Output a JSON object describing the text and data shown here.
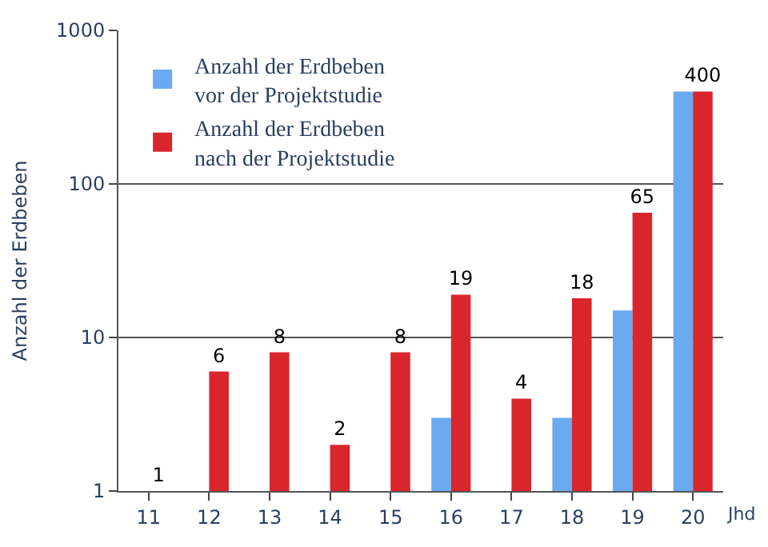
{
  "chart_data": {
    "type": "bar",
    "xlabel": "Jhd",
    "ylabel": "Anzahl der Erdbeben",
    "categories": [
      "11",
      "12",
      "13",
      "14",
      "15",
      "16",
      "17",
      "18",
      "19",
      "20"
    ],
    "series": [
      {
        "name": "Anzahl der Erdbeben\nvor der Projektstudie",
        "color": "#6aaaf0",
        "values": [
          null,
          null,
          null,
          null,
          null,
          3,
          null,
          3,
          15,
          400
        ]
      },
      {
        "name": "Anzahl der Erdbeben\nnach der Projektstudie",
        "color": "#d9262c",
        "values": [
          1,
          6,
          8,
          2,
          8,
          19,
          4,
          18,
          65,
          400
        ],
        "value_labels": [
          "1",
          "6",
          "8",
          "2",
          "8",
          "19",
          "4",
          "18",
          "65",
          "400"
        ]
      }
    ],
    "log": "y",
    "ylim": [
      1,
      1000
    ],
    "yticks": [
      1,
      10,
      100,
      1000
    ],
    "grid": "y",
    "legend": "top left"
  }
}
